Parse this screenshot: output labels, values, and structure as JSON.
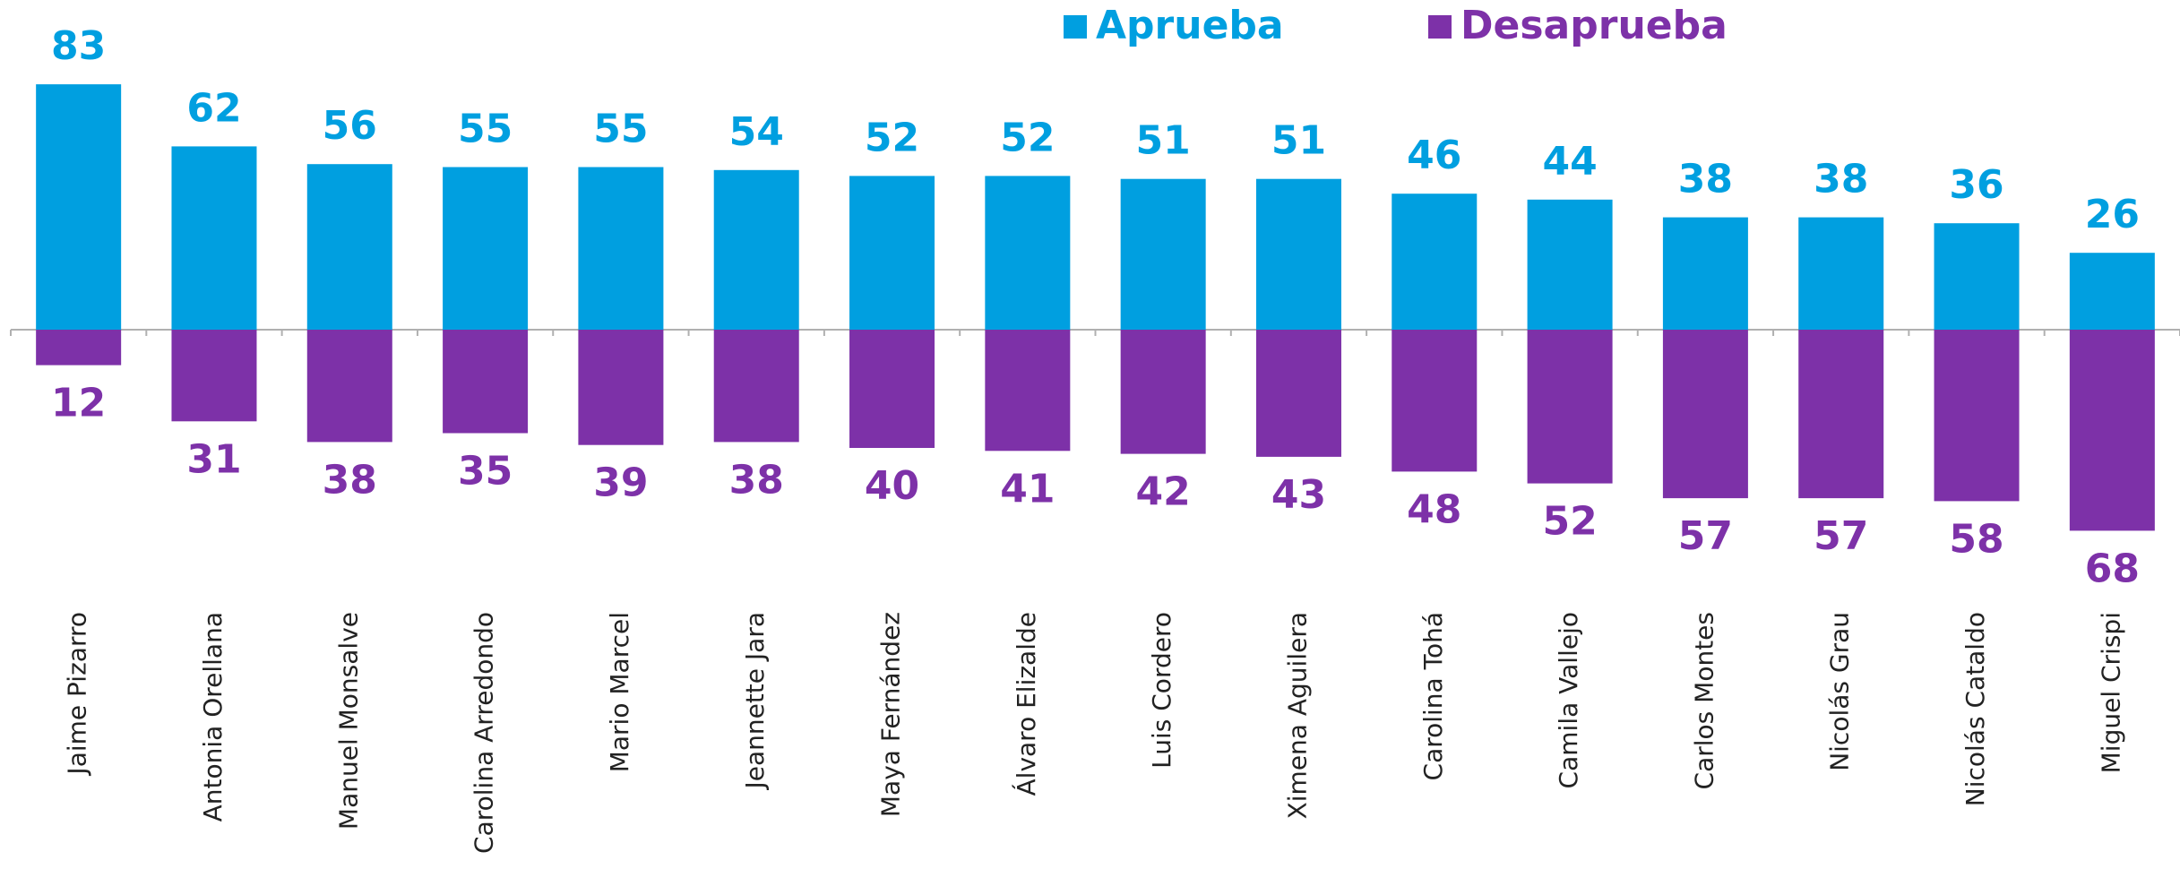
{
  "chart_data": {
    "type": "diverging_bar",
    "categories": [
      "Jaime Pizarro",
      "Antonia Orellana",
      "Manuel Monsalve",
      "Carolina Arredondo",
      "Mario Marcel",
      "Jeannette Jara",
      "Maya Fernández",
      "Álvaro Elizalde",
      "Luis Cordero",
      "Ximena Aguilera",
      "Carolina Tohá",
      "Camila Vallejo",
      "Carlos Montes",
      "Nicolás Grau",
      "Nicolás Cataldo",
      "Miguel Crispi"
    ],
    "series": [
      {
        "name": "Aprueba",
        "color": "#009fe0",
        "values": [
          83,
          62,
          56,
          55,
          55,
          54,
          52,
          52,
          51,
          51,
          46,
          44,
          38,
          38,
          36,
          26
        ]
      },
      {
        "name": "Desaprueba",
        "color": "#7d31a8",
        "values": [
          12,
          31,
          38,
          35,
          39,
          38,
          40,
          41,
          42,
          43,
          48,
          52,
          57,
          57,
          58,
          68
        ]
      }
    ]
  }
}
